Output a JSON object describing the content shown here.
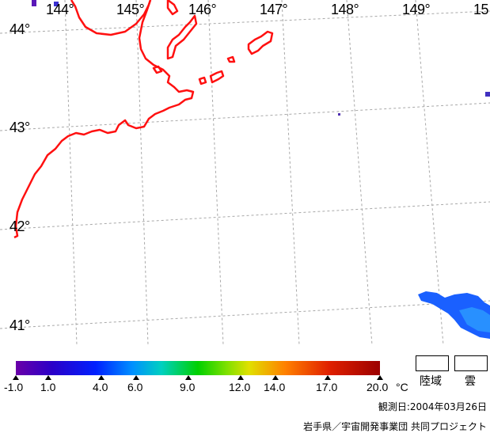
{
  "map": {
    "longitude_labels": [
      "144°",
      "145°",
      "146°",
      "147°",
      "148°",
      "149°",
      "15"
    ],
    "latitude_labels": [
      "44°",
      "43°",
      "42°",
      "41°"
    ],
    "coastline_color": "#ff0000",
    "grid_color": "#b0b0b0"
  },
  "colorbar": {
    "tick_labels": [
      "-1.0",
      "1.0",
      "4.0",
      "6.0",
      "9.0",
      "12.0",
      "14.0",
      "17.0",
      "20.0"
    ],
    "unit": "°C"
  },
  "legend": {
    "land_label": "陸域",
    "cloud_label": "雲"
  },
  "footer": {
    "observation_date": "観測日:2004年03月26日",
    "credit": "岩手県／宇宙開発事業団 共同プロジェクト"
  }
}
